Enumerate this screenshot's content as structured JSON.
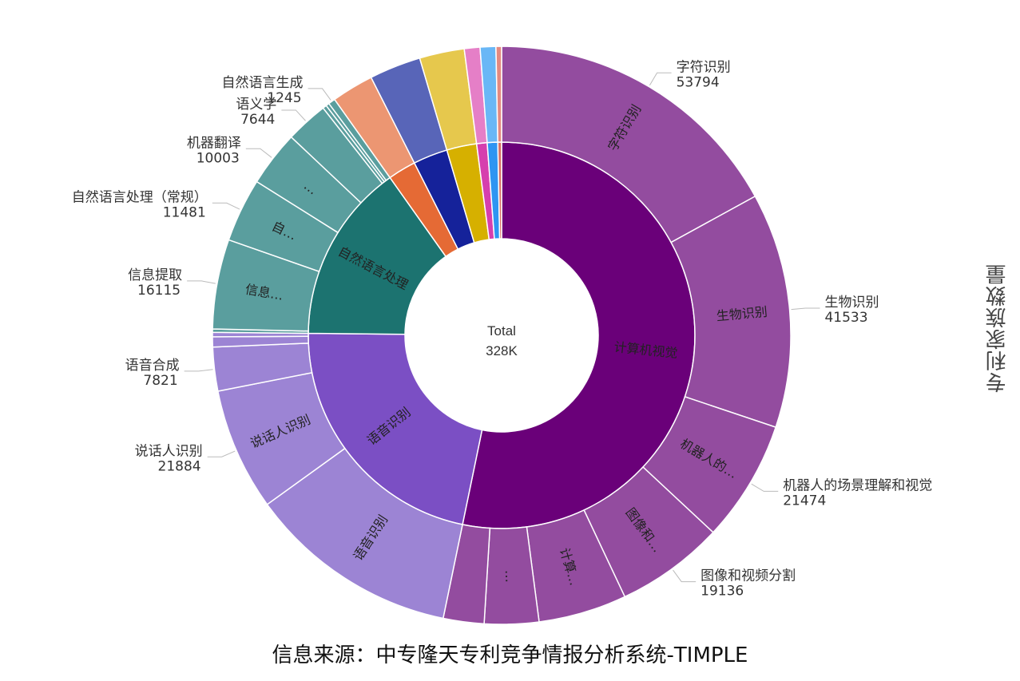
{
  "chart_data": {
    "type": "sunburst",
    "total_label": "Total",
    "total_value": "328K",
    "axis_title": "专利家族数量",
    "source": "信息来源：中专隆天专利竞争情报分析系统-TIMPLE",
    "inner": [
      {
        "name": "计算机视觉",
        "label": "计算机视觉",
        "value": 170000,
        "color": "#6a0079"
      },
      {
        "name": "语音识别",
        "label": "语音识别",
        "value": 70000,
        "color": "#7b4fc4"
      },
      {
        "name": "自然语言处理",
        "label": "自然语言处理",
        "value": 48000,
        "color": "#1c7370"
      },
      {
        "name": "c4",
        "label": "",
        "value": 7500,
        "color": "#e56a35"
      },
      {
        "name": "c5",
        "label": "",
        "value": 9200,
        "color": "#15229a"
      },
      {
        "name": "c6",
        "label": "",
        "value": 8000,
        "color": "#d6b000"
      },
      {
        "name": "c7",
        "label": "",
        "value": 2800,
        "color": "#d63fae"
      },
      {
        "name": "c8",
        "label": "",
        "value": 2800,
        "color": "#2e95f2"
      },
      {
        "name": "c9",
        "label": "",
        "value": 1000,
        "color": "#d86f62"
      }
    ],
    "outer": [
      {
        "parent": 0,
        "name": "字符识别",
        "label": "字符识别",
        "value": 53794,
        "callout": true
      },
      {
        "parent": 0,
        "name": "生物识别",
        "label": "生物识别",
        "value": 41533,
        "callout": true
      },
      {
        "parent": 0,
        "name": "机器人的场景理解和视觉",
        "label": "机器人的…",
        "value": 21474,
        "callout": true
      },
      {
        "parent": 0,
        "name": "图像和视频分割",
        "label": "图像和…",
        "value": 19136,
        "callout": true
      },
      {
        "parent": 0,
        "name": "v5",
        "label": "计算…",
        "value": 15600,
        "callout": false
      },
      {
        "parent": 0,
        "name": "v6",
        "label": "…",
        "value": 9600,
        "callout": false
      },
      {
        "parent": 0,
        "name": "v7",
        "label": "",
        "value": 7200,
        "callout": false
      },
      {
        "parent": 1,
        "name": "s1",
        "label": "语音识别",
        "value": 37700,
        "callout": false
      },
      {
        "parent": 1,
        "name": "说话人识别",
        "label": "说话人识别",
        "value": 21884,
        "callout": true
      },
      {
        "parent": 1,
        "name": "语音合成",
        "label": "",
        "value": 7821,
        "callout": true
      },
      {
        "parent": 1,
        "name": "s4",
        "label": "",
        "value": 1800,
        "callout": false
      },
      {
        "parent": 1,
        "name": "s5",
        "label": "",
        "value": 795,
        "callout": false
      },
      {
        "parent": 2,
        "name": "n0",
        "label": "",
        "value": 600,
        "callout": false
      },
      {
        "parent": 2,
        "name": "信息提取",
        "label": "信息…",
        "value": 16115,
        "callout": true
      },
      {
        "parent": 2,
        "name": "自然语言处理（常规）",
        "label": "自…",
        "value": 11481,
        "callout": true
      },
      {
        "parent": 2,
        "name": "机器翻译",
        "label": "…",
        "value": 10003,
        "callout": true
      },
      {
        "parent": 2,
        "name": "语义学",
        "label": "",
        "value": 7644,
        "callout": true
      },
      {
        "parent": 2,
        "name": "n5",
        "label": "",
        "value": 700,
        "callout": false
      },
      {
        "parent": 2,
        "name": "n6",
        "label": "",
        "value": 600,
        "callout": false
      },
      {
        "parent": 2,
        "name": "自然语言生成",
        "label": "",
        "value": 1245,
        "callout": true
      },
      {
        "parent": 3,
        "name": "c4o",
        "label": "",
        "value": 7500,
        "callout": false
      },
      {
        "parent": 4,
        "name": "c5o",
        "label": "",
        "value": 9200,
        "callout": false
      },
      {
        "parent": 5,
        "name": "c6o",
        "label": "",
        "value": 8000,
        "callout": false
      },
      {
        "parent": 6,
        "name": "c7o",
        "label": "",
        "value": 2800,
        "callout": false
      },
      {
        "parent": 7,
        "name": "c8o",
        "label": "",
        "value": 2800,
        "callout": false
      },
      {
        "parent": 8,
        "name": "c9o",
        "label": "",
        "value": 1000,
        "callout": false
      }
    ],
    "outer_colors": {
      "0": "#934c9f",
      "1": "#9c84d4",
      "2": "#5a9e9e",
      "3": "#ec9672",
      "4": "#5865b8",
      "5": "#e6c84d",
      "6": "#e57fc7",
      "7": "#69b7f6",
      "8": "#e48a80"
    },
    "callouts": [
      {
        "ref": "字符识别",
        "name": "字符识别",
        "value": "53794",
        "side": "right"
      },
      {
        "ref": "生物识别",
        "name": "生物识别",
        "value": "41533",
        "side": "right"
      },
      {
        "ref": "机器人的场景理解和视觉",
        "name": "机器人的场景理解和视觉",
        "value": "21474",
        "side": "right"
      },
      {
        "ref": "图像和视频分割",
        "name": "图像和视频分割",
        "value": "19136",
        "side": "right"
      },
      {
        "ref": "说话人识别",
        "name": "说话人识别",
        "value": "21884",
        "side": "left"
      },
      {
        "ref": "语音合成",
        "name": "语音合成",
        "value": "7821",
        "side": "left"
      },
      {
        "ref": "信息提取",
        "name": "信息提取",
        "value": "16115",
        "side": "left"
      },
      {
        "ref": "自然语言处理（常规）",
        "name": "自然语言处理（常规）",
        "value": "11481",
        "side": "left"
      },
      {
        "ref": "机器翻译",
        "name": "机器翻译",
        "value": "10003",
        "side": "left"
      },
      {
        "ref": "语义学",
        "name": "语义学",
        "value": "7644",
        "side": "left"
      },
      {
        "ref": "自然语言生成",
        "name": "自然语言生成",
        "value": "1245",
        "side": "left"
      }
    ]
  }
}
